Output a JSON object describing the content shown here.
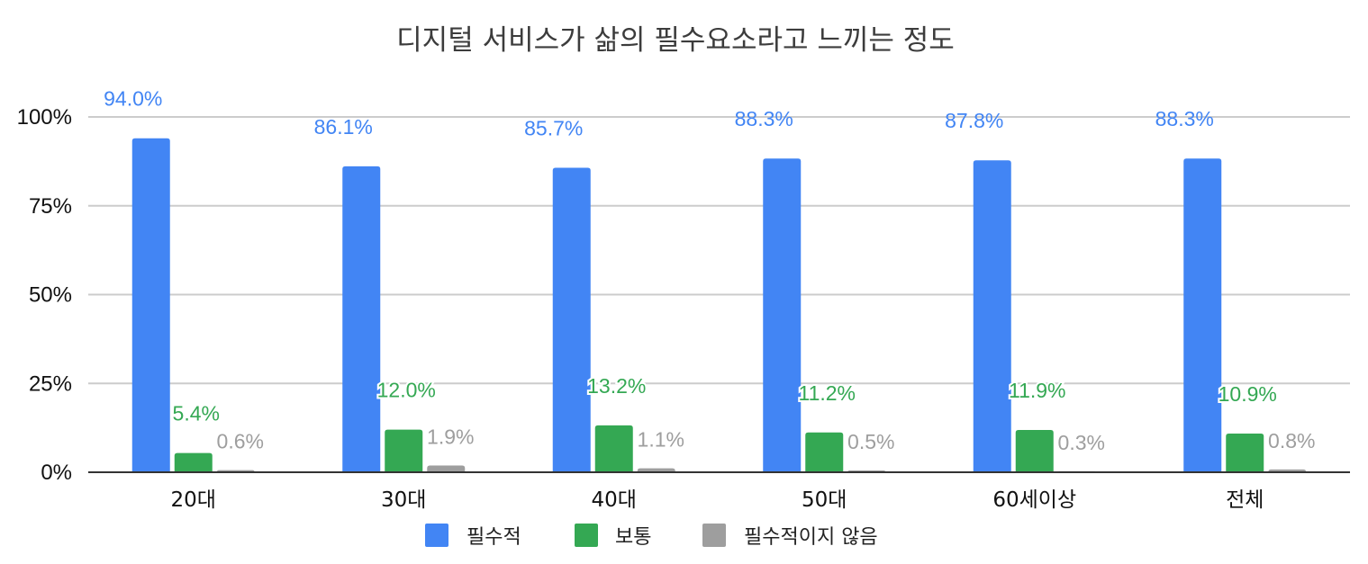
{
  "chart_data": {
    "type": "bar",
    "title": "디지털 서비스가 삶의 필수요소라고 느끼는 정도",
    "xlabel": "",
    "ylabel": "",
    "categories": [
      "20대",
      "30대",
      "40대",
      "50대",
      "60세이상",
      "전체"
    ],
    "series": [
      {
        "name": "필수적",
        "color": "#4285f4",
        "values": [
          94.0,
          86.1,
          85.7,
          88.3,
          87.8,
          88.3
        ],
        "labels": [
          "94.0%",
          "86.1%",
          "85.7%",
          "88.3%",
          "87.8%",
          "88.3%"
        ]
      },
      {
        "name": "보통",
        "color": "#34a853",
        "values": [
          5.4,
          12.0,
          13.2,
          11.2,
          11.9,
          10.9
        ],
        "labels": [
          "5.4%",
          "12.0%",
          "13.2%",
          "11.2%",
          "11.9%",
          "10.9%"
        ]
      },
      {
        "name": "필수적이지 않음",
        "color": "#9e9e9e",
        "values": [
          0.6,
          1.9,
          1.1,
          0.5,
          0.3,
          0.8
        ],
        "labels": [
          "0.6%",
          "1.9%",
          "1.1%",
          "0.5%",
          "0.3%",
          "0.8%"
        ]
      }
    ],
    "y_ticks": [
      "0%",
      "25%",
      "50%",
      "75%",
      "100%"
    ],
    "y_tick_values": [
      0,
      25,
      50,
      75,
      100
    ],
    "ylim": [
      0,
      100
    ],
    "grid": true,
    "legend_position": "bottom"
  }
}
